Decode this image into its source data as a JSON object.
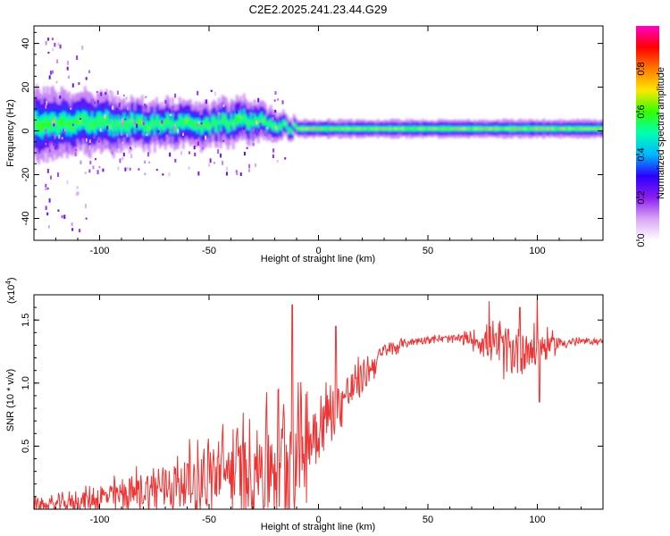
{
  "chart_data": [
    {
      "type": "heatmap",
      "title": "C2E2.2025.241.23.44.G29",
      "xlabel": "Height of straight line (km)",
      "ylabel": "Frequency (Hz)",
      "xlim": [
        -130,
        130
      ],
      "ylim": [
        -50,
        48
      ],
      "xticks": [
        -100,
        -50,
        0,
        50,
        100
      ],
      "xtick_labels": [
        "-100",
        "-50",
        "0",
        "50",
        "100"
      ],
      "yticks": [
        -40,
        -20,
        0,
        20,
        40
      ],
      "ytick_labels": [
        "-40",
        "-20",
        "0",
        "20",
        "40"
      ],
      "center_track": {
        "x": [
          -130,
          -110,
          -90,
          -70,
          -50,
          -35,
          -25,
          -18,
          -10,
          0,
          10,
          30,
          50,
          70,
          90,
          110,
          130
        ],
        "freq": [
          3,
          4,
          3,
          3,
          3,
          5,
          4,
          2,
          1,
          1,
          1,
          1,
          1,
          1,
          1,
          1,
          1
        ],
        "half_width": [
          8,
          7,
          6,
          5,
          5,
          5,
          4,
          3,
          2,
          2,
          2,
          2,
          2,
          2,
          2,
          2,
          2
        ]
      },
      "colorbar": {
        "label": "Normalized spectral amplitude",
        "range": [
          0,
          1
        ],
        "ticks": [
          0.0,
          0.2,
          0.4,
          0.6,
          0.8
        ],
        "tick_labels": [
          "0.0",
          "0.2",
          "0.4",
          "0.6",
          "0.8"
        ],
        "colors": [
          "#ffffff",
          "#d9a6f5",
          "#8b1cf0",
          "#2a00ff",
          "#00b8ff",
          "#00ffb3",
          "#33ff00",
          "#ffe600",
          "#ff7a00",
          "#ff0000",
          "#ff00c8"
        ]
      }
    },
    {
      "type": "line",
      "xlabel": "Height of straight line (km)",
      "ylabel": "SNR (10 * v/v)",
      "scale_label": "(x10",
      "scale_exp": "4",
      "scale_close": ")",
      "xlim": [
        -130,
        130
      ],
      "ylim": [
        0,
        17000
      ],
      "xticks": [
        -100,
        -50,
        0,
        50,
        100
      ],
      "xtick_labels": [
        "-100",
        "-50",
        "0",
        "50",
        "100"
      ],
      "yticks": [
        5000,
        10000,
        15000
      ],
      "ytick_labels": [
        "0.5",
        "1.0",
        "1.5"
      ],
      "color": "#ee3333",
      "envelope": {
        "x": [
          -130,
          -120,
          -110,
          -100,
          -90,
          -80,
          -70,
          -60,
          -50,
          -40,
          -30,
          -25,
          -20,
          -15,
          -10,
          -5,
          0,
          5,
          10,
          15,
          20,
          25,
          30,
          40,
          50,
          60,
          70,
          75,
          80,
          85,
          90,
          95,
          100,
          105,
          110,
          120,
          130
        ],
        "base": [
          300,
          400,
          600,
          900,
          1200,
          1500,
          1800,
          2200,
          2600,
          3000,
          3400,
          3700,
          4000,
          4300,
          4800,
          5500,
          6500,
          7500,
          8500,
          9500,
          10500,
          11500,
          12500,
          13200,
          13500,
          13500,
          13500,
          13300,
          13000,
          12800,
          12600,
          12700,
          12800,
          13000,
          13200,
          13300,
          13300
        ],
        "spread": [
          800,
          900,
          1200,
          1500,
          2000,
          2500,
          3000,
          3500,
          4200,
          5000,
          6000,
          6500,
          7000,
          7000,
          6500,
          6000,
          4500,
          3500,
          3000,
          2500,
          2000,
          1500,
          1000,
          500,
          400,
          500,
          900,
          1500,
          2200,
          2800,
          3000,
          2800,
          2500,
          1500,
          800,
          400,
          300
        ]
      },
      "spikes": [
        {
          "x": -12,
          "y": 16200
        },
        {
          "x": 8,
          "y": 14500
        },
        {
          "x": 78,
          "y": 16500
        },
        {
          "x": 92,
          "y": 16000
        },
        {
          "x": 100,
          "y": 17000
        },
        {
          "x": 101,
          "y": 8500
        }
      ]
    }
  ]
}
